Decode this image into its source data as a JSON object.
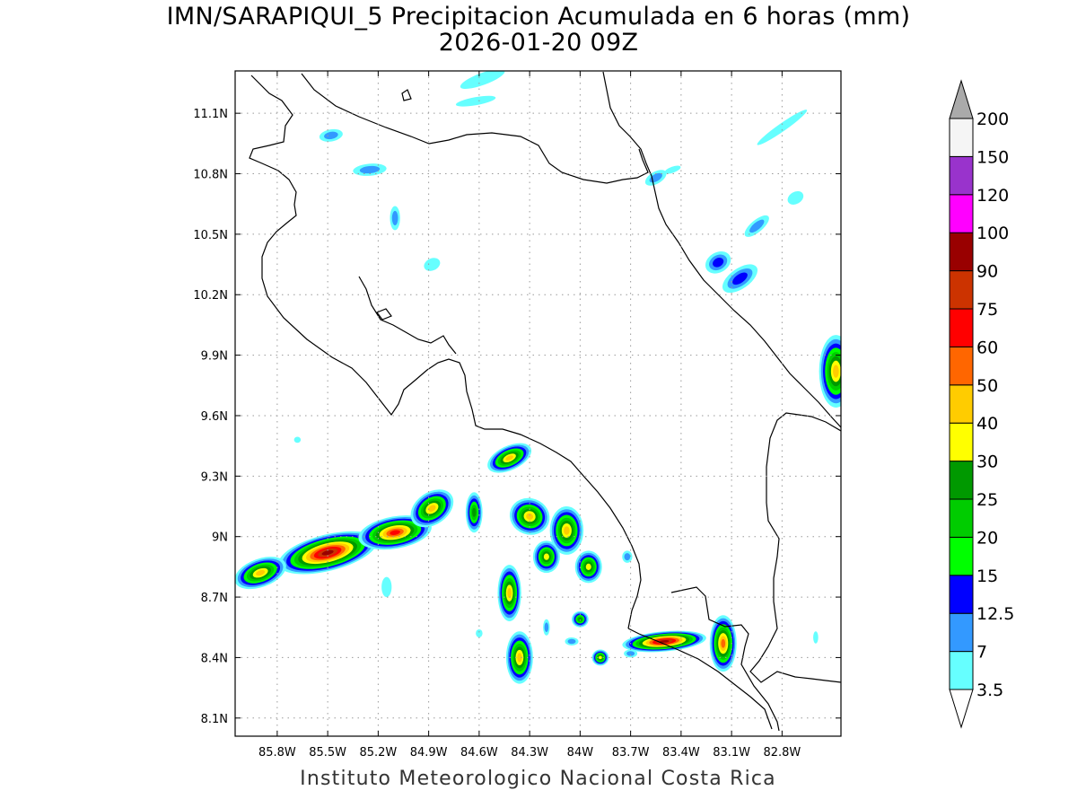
{
  "title": {
    "line1": "IMN/SARAPIQUI_5 Precipitacion Acumulada en 6 horas (mm)",
    "line2": "2026-01-20 09Z"
  },
  "credit": "Instituto Meteorologico Nacional Costa Rica",
  "map": {
    "lon_range": [
      -86.05,
      -82.45
    ],
    "lat_range": [
      8.01,
      11.31
    ],
    "x_ticks": [
      {
        "value": -85.8,
        "label": "85.8W"
      },
      {
        "value": -85.5,
        "label": "85.5W"
      },
      {
        "value": -85.2,
        "label": "85.2W"
      },
      {
        "value": -84.9,
        "label": "84.9W"
      },
      {
        "value": -84.6,
        "label": "84.6W"
      },
      {
        "value": -84.3,
        "label": "84.3W"
      },
      {
        "value": -84.0,
        "label": "84W"
      },
      {
        "value": -83.7,
        "label": "83.7W"
      },
      {
        "value": -83.4,
        "label": "83.4W"
      },
      {
        "value": -83.1,
        "label": "83.1W"
      },
      {
        "value": -82.8,
        "label": "82.8W"
      }
    ],
    "y_ticks": [
      {
        "value": 11.1,
        "label": "11.1N"
      },
      {
        "value": 10.8,
        "label": "10.8N"
      },
      {
        "value": 10.5,
        "label": "10.5N"
      },
      {
        "value": 10.2,
        "label": "10.2N"
      },
      {
        "value": 9.9,
        "label": "9.9N"
      },
      {
        "value": 9.6,
        "label": "9.6N"
      },
      {
        "value": 9.3,
        "label": "9.3N"
      },
      {
        "value": 9.0,
        "label": "9N"
      },
      {
        "value": 8.7,
        "label": "8.7N"
      },
      {
        "value": 8.4,
        "label": "8.4N"
      },
      {
        "value": 8.1,
        "label": "8.1N"
      }
    ],
    "grid": "dotted"
  },
  "colorbar": {
    "levels": [
      {
        "label": "3.5",
        "color": "#66ffff"
      },
      {
        "label": "7",
        "color": "#3399ff"
      },
      {
        "label": "12.5",
        "color": "#0000ff"
      },
      {
        "label": "15",
        "color": "#00ff00"
      },
      {
        "label": "20",
        "color": "#00cc00"
      },
      {
        "label": "25",
        "color": "#009900"
      },
      {
        "label": "30",
        "color": "#ffff00"
      },
      {
        "label": "40",
        "color": "#ffcc00"
      },
      {
        "label": "50",
        "color": "#ff6600"
      },
      {
        "label": "60",
        "color": "#ff0000"
      },
      {
        "label": "75",
        "color": "#cc3300"
      },
      {
        "label": "90",
        "color": "#990000"
      },
      {
        "label": "100",
        "color": "#ff00ff"
      },
      {
        "label": "120",
        "color": "#9933cc"
      },
      {
        "label": "150",
        "color": "#f5f5f5"
      },
      {
        "label": "200",
        "color": "#aaaaaa"
      }
    ]
  },
  "rain_cells": [
    {
      "lon": -85.5,
      "lat": 8.92,
      "rlon": 0.3,
      "rlat": 0.09,
      "angle": -14,
      "max": 90
    },
    {
      "lon": -85.9,
      "lat": 8.82,
      "rlon": 0.16,
      "rlat": 0.07,
      "angle": -20,
      "max": 40
    },
    {
      "lon": -85.1,
      "lat": 9.02,
      "rlon": 0.22,
      "rlat": 0.08,
      "angle": -10,
      "max": 60
    },
    {
      "lon": -84.88,
      "lat": 9.14,
      "rlon": 0.14,
      "rlat": 0.08,
      "angle": -35,
      "max": 40
    },
    {
      "lon": -84.42,
      "lat": 9.39,
      "rlon": 0.14,
      "rlat": 0.06,
      "angle": -25,
      "max": 40
    },
    {
      "lon": -84.3,
      "lat": 9.1,
      "rlon": 0.12,
      "rlat": 0.09,
      "angle": 20,
      "max": 40
    },
    {
      "lon": -84.08,
      "lat": 9.03,
      "rlon": 0.1,
      "rlat": 0.12,
      "angle": 0,
      "max": 40
    },
    {
      "lon": -84.2,
      "lat": 8.9,
      "rlon": 0.08,
      "rlat": 0.08,
      "angle": 0,
      "max": 30
    },
    {
      "lon": -83.95,
      "lat": 8.85,
      "rlon": 0.08,
      "rlat": 0.08,
      "angle": 0,
      "max": 30
    },
    {
      "lon": -84.42,
      "lat": 8.72,
      "rlon": 0.07,
      "rlat": 0.14,
      "angle": 0,
      "max": 40
    },
    {
      "lon": -84.36,
      "lat": 8.4,
      "rlon": 0.08,
      "rlat": 0.13,
      "angle": 0,
      "max": 40
    },
    {
      "lon": -84.63,
      "lat": 9.12,
      "rlon": 0.05,
      "rlat": 0.1,
      "angle": 0,
      "max": 25
    },
    {
      "lon": -83.5,
      "lat": 8.48,
      "rlon": 0.25,
      "rlat": 0.05,
      "angle": -5,
      "max": 90
    },
    {
      "lon": -83.15,
      "lat": 8.47,
      "rlon": 0.08,
      "rlat": 0.14,
      "angle": 0,
      "max": 50
    },
    {
      "lon": -82.48,
      "lat": 9.82,
      "rlon": 0.1,
      "rlat": 0.18,
      "angle": 0,
      "max": 40
    },
    {
      "lon": -83.05,
      "lat": 10.28,
      "rlon": 0.12,
      "rlat": 0.05,
      "angle": -35,
      "max": 12.5
    },
    {
      "lon": -83.18,
      "lat": 10.36,
      "rlon": 0.08,
      "rlat": 0.05,
      "angle": -30,
      "max": 12.5
    },
    {
      "lon": -84.0,
      "lat": 8.59,
      "rlon": 0.05,
      "rlat": 0.04,
      "angle": 0,
      "max": 25
    },
    {
      "lon": -83.88,
      "lat": 8.4,
      "rlon": 0.05,
      "rlat": 0.04,
      "angle": 0,
      "max": 30
    },
    {
      "lon": -85.25,
      "lat": 10.82,
      "rlon": 0.1,
      "rlat": 0.03,
      "angle": -5,
      "max": 7
    },
    {
      "lon": -85.48,
      "lat": 10.99,
      "rlon": 0.07,
      "rlat": 0.03,
      "angle": -10,
      "max": 7
    },
    {
      "lon": -84.58,
      "lat": 11.27,
      "rlon": 0.14,
      "rlat": 0.03,
      "angle": -20,
      "max": 3.5
    },
    {
      "lon": -84.62,
      "lat": 11.16,
      "rlon": 0.12,
      "rlat": 0.02,
      "angle": -10,
      "max": 3.5
    },
    {
      "lon": -82.8,
      "lat": 11.03,
      "rlon": 0.18,
      "rlat": 0.02,
      "angle": -35,
      "max": 3.5
    },
    {
      "lon": -83.45,
      "lat": 10.82,
      "rlon": 0.05,
      "rlat": 0.015,
      "angle": -20,
      "max": 3.5
    },
    {
      "lon": -85.1,
      "lat": 10.58,
      "rlon": 0.03,
      "rlat": 0.06,
      "angle": 0,
      "max": 7
    },
    {
      "lon": -84.88,
      "lat": 10.35,
      "rlon": 0.05,
      "rlat": 0.03,
      "angle": -25,
      "max": 3.5
    },
    {
      "lon": -83.55,
      "lat": 10.78,
      "rlon": 0.07,
      "rlat": 0.03,
      "angle": -30,
      "max": 7
    },
    {
      "lon": -82.95,
      "lat": 10.54,
      "rlon": 0.09,
      "rlat": 0.03,
      "angle": -40,
      "max": 7
    },
    {
      "lon": -82.72,
      "lat": 10.68,
      "rlon": 0.05,
      "rlat": 0.03,
      "angle": -30,
      "max": 3.5
    },
    {
      "lon": -84.6,
      "lat": 8.52,
      "rlon": 0.02,
      "rlat": 0.02,
      "angle": 0,
      "max": 3.5
    },
    {
      "lon": -84.2,
      "lat": 8.55,
      "rlon": 0.02,
      "rlat": 0.04,
      "angle": 0,
      "max": 7
    },
    {
      "lon": -84.05,
      "lat": 8.48,
      "rlon": 0.04,
      "rlat": 0.02,
      "angle": 0,
      "max": 7
    },
    {
      "lon": -83.7,
      "lat": 8.42,
      "rlon": 0.04,
      "rlat": 0.02,
      "angle": 0,
      "max": 7
    },
    {
      "lon": -82.6,
      "lat": 8.5,
      "rlon": 0.015,
      "rlat": 0.03,
      "angle": 0,
      "max": 3.5
    },
    {
      "lon": -85.68,
      "lat": 9.48,
      "rlon": 0.02,
      "rlat": 0.015,
      "angle": 0,
      "max": 3.5
    },
    {
      "lon": -85.15,
      "lat": 8.75,
      "rlon": 0.03,
      "rlat": 0.05,
      "angle": 0,
      "max": 3.5
    },
    {
      "lon": -83.72,
      "lat": 8.9,
      "rlon": 0.03,
      "rlat": 0.03,
      "angle": 0,
      "max": 7
    }
  ]
}
